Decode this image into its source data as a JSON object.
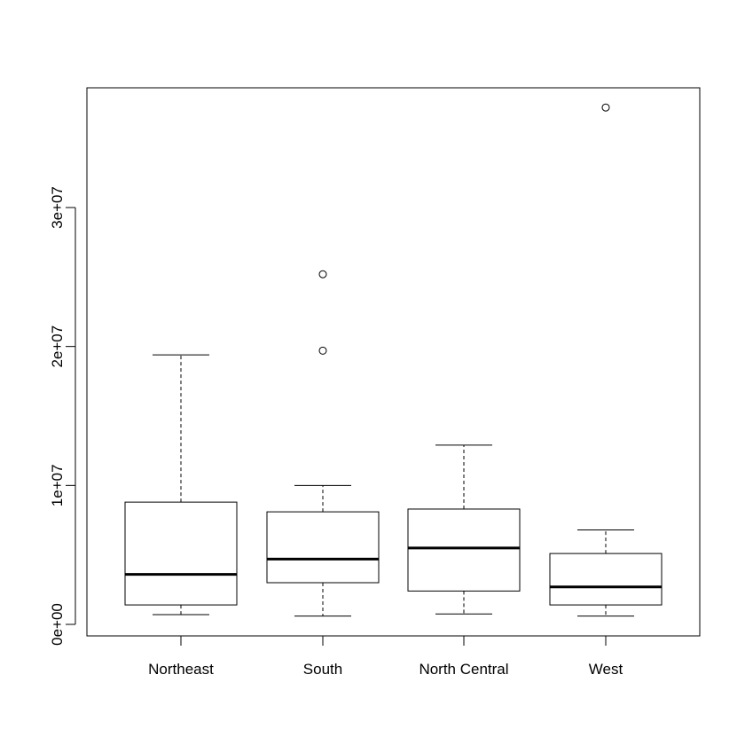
{
  "chart_data": {
    "type": "boxplot",
    "title": "",
    "xlabel": "",
    "ylabel": "",
    "categories": [
      "Northeast",
      "South",
      "North Central",
      "West"
    ],
    "boxes": [
      {
        "category": "Northeast",
        "whisker_low": 700000,
        "q1": 1400000,
        "median": 3600000,
        "q3": 8800000,
        "whisker_high": 19400000,
        "outliers": []
      },
      {
        "category": "South",
        "whisker_low": 600000,
        "q1": 3000000,
        "median": 4700000,
        "q3": 8100000,
        "whisker_high": 10000000,
        "outliers": [
          19700000,
          25200000
        ]
      },
      {
        "category": "North Central",
        "whisker_low": 750000,
        "q1": 2400000,
        "median": 5500000,
        "q3": 8300000,
        "whisker_high": 12900000,
        "outliers": []
      },
      {
        "category": "West",
        "whisker_low": 600000,
        "q1": 1400000,
        "median": 2700000,
        "q3": 5100000,
        "whisker_high": 6800000,
        "outliers": [
          37200000
        ]
      }
    ],
    "y_ticks": [
      0,
      10000000,
      20000000,
      30000000
    ],
    "y_tick_labels": [
      "0e+00",
      "1e+07",
      "2e+07",
      "3e+07"
    ],
    "ylim": [
      -800000,
      38600000
    ],
    "grid": false,
    "legend": "none"
  }
}
